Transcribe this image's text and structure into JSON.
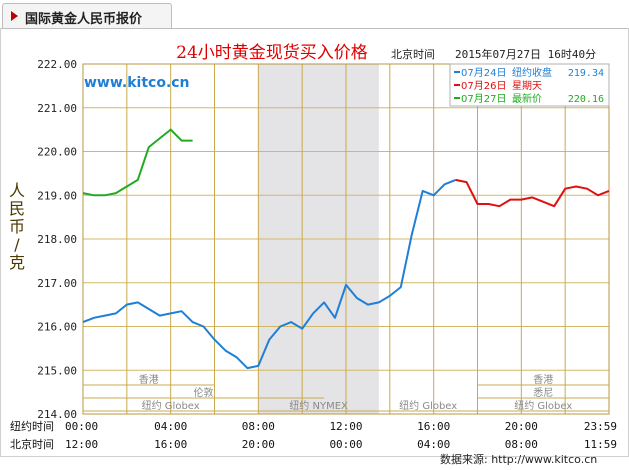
{
  "tab": {
    "title": "国际黄金人民币报价"
  },
  "chart_data": {
    "type": "line",
    "title": "24小时黄金现货买入价格",
    "header_time_label": "北京时间",
    "header_timestamp": "2015年07月27日 16时40分",
    "site_label": "www.kitco.cn",
    "ylabel": "人民币/克",
    "ylim": [
      214,
      222
    ],
    "y_ticks": [
      "222.00",
      "221.00",
      "220.00",
      "219.00",
      "218.00",
      "217.00",
      "216.00",
      "215.00",
      "214.00"
    ],
    "x_rows": [
      {
        "label": "纽约时间",
        "ticks": [
          "00:00",
          "04:00",
          "08:00",
          "12:00",
          "16:00",
          "20:00",
          "23:59"
        ]
      },
      {
        "label": "北京时间",
        "ticks": [
          "12:00",
          "16:00",
          "20:00",
          "00:00",
          "04:00",
          "08:00",
          "11:59"
        ]
      }
    ],
    "legend": [
      {
        "date": "07月24日",
        "label": "纽约收盘",
        "value": "219.34",
        "color": "#1f7fd6"
      },
      {
        "date": "07月26日",
        "label": "星期天",
        "value": "",
        "color": "#e01010"
      },
      {
        "date": "07月27日",
        "label": "最新价",
        "value": "220.16",
        "color": "#22aa22"
      }
    ],
    "sessions": [
      {
        "label": "香港"
      },
      {
        "label": "伦敦"
      },
      {
        "label": "纽约 Globex"
      },
      {
        "label": "纽约 NYMEX"
      },
      {
        "label": "纽约 Globex"
      },
      {
        "label": "纽约 Globex"
      },
      {
        "label": "悉尼"
      },
      {
        "label": "香港"
      }
    ],
    "series": [
      {
        "name": "07月24日",
        "color": "#1f7fd6",
        "x": [
          0,
          0.5,
          1,
          1.5,
          2,
          2.5,
          3,
          3.5,
          4,
          4.5,
          5,
          5.5,
          6,
          6.5,
          7,
          7.5,
          8,
          8.5,
          9,
          9.5,
          10,
          10.5,
          11,
          11.5,
          12,
          12.5,
          13,
          13.5,
          14,
          14.5,
          15,
          15.5,
          16,
          16.5,
          17
        ],
        "y": [
          216.1,
          216.2,
          216.25,
          216.3,
          216.5,
          216.55,
          216.4,
          216.25,
          216.3,
          216.35,
          216.1,
          216.0,
          215.7,
          215.45,
          215.3,
          215.05,
          215.1,
          215.7,
          216.0,
          216.1,
          215.95,
          216.3,
          216.55,
          216.2,
          216.95,
          216.65,
          216.5,
          216.55,
          216.7,
          216.9,
          218.1,
          219.1,
          219.0,
          219.25,
          219.35
        ]
      },
      {
        "name": "07月26日",
        "color": "#e01010",
        "x": [
          17,
          17.5,
          18,
          18.5,
          19,
          19.5,
          20,
          20.5,
          21,
          21.5,
          22,
          22.5,
          23,
          23.5,
          24
        ],
        "y": [
          219.35,
          219.3,
          218.8,
          218.8,
          218.75,
          218.9,
          218.9,
          218.95,
          218.85,
          218.75,
          219.15,
          219.2,
          219.15,
          219.0,
          219.1
        ]
      },
      {
        "name": "07月27日",
        "color": "#22aa22",
        "x": [
          0,
          0.5,
          1,
          1.5,
          2,
          2.5,
          3,
          3.5,
          4,
          4.5,
          5
        ],
        "y": [
          219.05,
          219.0,
          219.0,
          219.05,
          219.2,
          219.35,
          220.1,
          220.3,
          220.5,
          220.25,
          220.25
        ]
      }
    ],
    "shaded_range_hours": [
      8,
      13.5
    ],
    "source": "数据来源: http://www.kitco.cn"
  }
}
